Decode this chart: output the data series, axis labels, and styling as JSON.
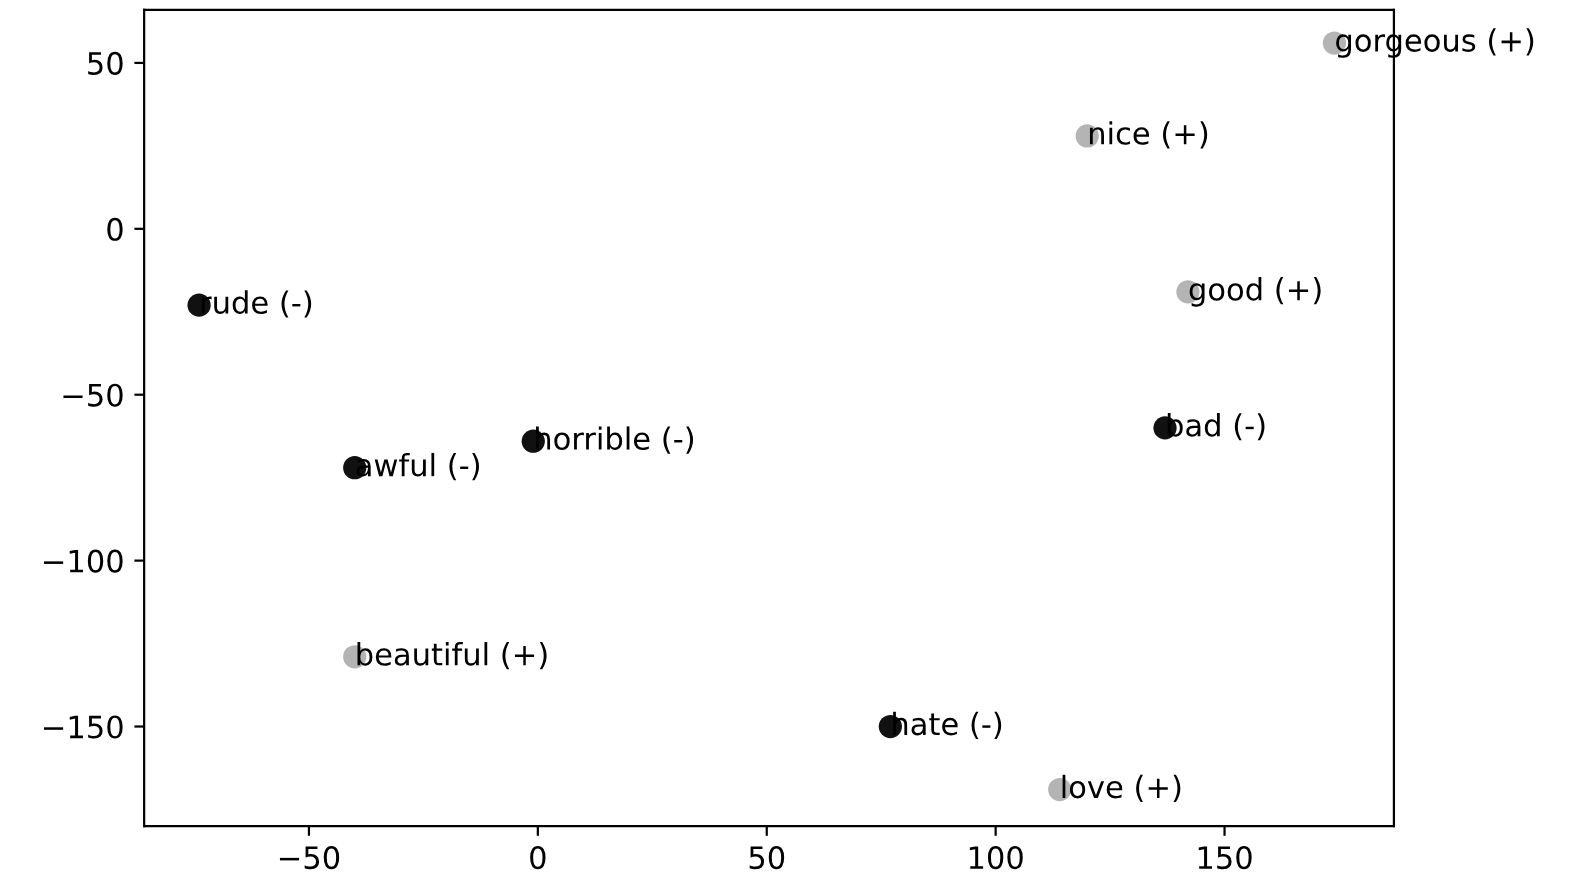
{
  "chart_data": {
    "type": "scatter",
    "series": [
      {
        "color": "#111111",
        "x": [
          -74,
          -40,
          -1,
          77,
          137
        ],
        "values": [
          -23,
          -72,
          -64,
          -150,
          -60
        ]
      },
      {
        "color": "#b4b4b4",
        "x": [
          -40,
          114,
          142,
          120,
          174
        ],
        "values": [
          -129,
          -169,
          -19,
          28,
          56
        ]
      }
    ],
    "annotations": [
      {
        "text": "rude (-)",
        "x": -74,
        "y": -23
      },
      {
        "text": "awful (-)",
        "x": -40,
        "y": -72
      },
      {
        "text": "horrible (-)",
        "x": -1,
        "y": -64
      },
      {
        "text": "hate (-)",
        "x": 77,
        "y": -150
      },
      {
        "text": "bad (-)",
        "x": 137,
        "y": -60
      },
      {
        "text": "beautiful (+)",
        "x": -40,
        "y": -129
      },
      {
        "text": "love (+)",
        "x": 114,
        "y": -169
      },
      {
        "text": "good (+)",
        "x": 142,
        "y": -19
      },
      {
        "text": "nice (+)",
        "x": 120,
        "y": 28
      },
      {
        "text": "gorgeous (+)",
        "x": 174,
        "y": 56
      }
    ],
    "xlim": [
      -86,
      187
    ],
    "ylim": [
      -180,
      66
    ],
    "xticks": [
      {
        "value": -50,
        "label": "−50"
      },
      0,
      50,
      100,
      150
    ],
    "yticks": [
      50,
      0,
      {
        "value": -50,
        "label": "−50"
      },
      {
        "value": -100,
        "label": "−100"
      },
      {
        "value": -150,
        "label": "−150"
      }
    ],
    "grid": false,
    "legend": false,
    "marker": "circle"
  }
}
